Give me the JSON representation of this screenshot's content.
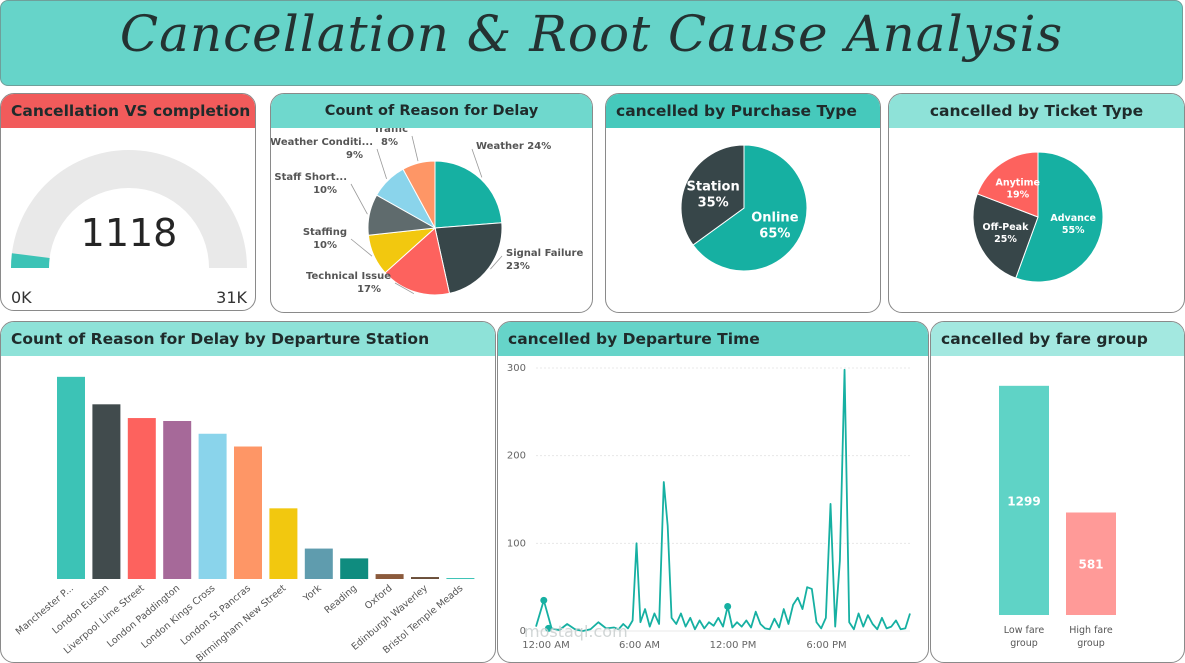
{
  "page_title": "Cancellation & Root Cause Analysis",
  "watermark": "mostaql.com",
  "gauge": {
    "title": "Cancellation VS completion",
    "value_label": "1118",
    "min_label": "0K",
    "max_label": "31K",
    "value": 1118,
    "max": 31000,
    "header_color": "#f15b5b",
    "fill_color": "#3cc3b6"
  },
  "reason_pie": {
    "title": "Count of Reason for Delay",
    "slices": [
      {
        "label": "Weather",
        "pct_label": "24%",
        "value": 24,
        "color": "#16b0a2"
      },
      {
        "label": "Signal Failure",
        "pct_label": "23%",
        "value": 23,
        "color": "#374649"
      },
      {
        "label": "Technical Issue",
        "pct_label": "17%",
        "value": 17,
        "color": "#fd625e"
      },
      {
        "label": "Staffing",
        "pct_label": "10%",
        "value": 10,
        "color": "#f2c80f"
      },
      {
        "label": "Staff Short...",
        "pct_label": "10%",
        "value": 10,
        "color": "#5f6b6d"
      },
      {
        "label": "Weather Conditi...",
        "pct_label": "9%",
        "value": 9,
        "color": "#8ad4eb"
      },
      {
        "label": "Traffic",
        "pct_label": "8%",
        "value": 8,
        "color": "#fe9666"
      }
    ]
  },
  "purchase_pie": {
    "title": "cancelled by Purchase Type",
    "slices": [
      {
        "label": "Online",
        "pct_label": "65%",
        "value": 65,
        "color": "#16b0a2"
      },
      {
        "label": "Station",
        "pct_label": "35%",
        "value": 35,
        "color": "#374649"
      }
    ]
  },
  "ticket_pie": {
    "title": "cancelled by Ticket Type",
    "slices": [
      {
        "label": "Advance",
        "pct_label": "55%",
        "value": 55,
        "color": "#16b0a2"
      },
      {
        "label": "Off-Peak",
        "pct_label": "25%",
        "value": 25,
        "color": "#374649"
      },
      {
        "label": "Anytime",
        "pct_label": "19%",
        "value": 19,
        "color": "#fd625e"
      }
    ]
  },
  "station_bar": {
    "title": "Count of Reason for Delay by Departure Station",
    "ymax": 215,
    "bars": [
      {
        "label": "Manchester P...",
        "value": 206,
        "color": "#3cc3b6"
      },
      {
        "label": "London Euston",
        "value": 178,
        "color": "#414b4d"
      },
      {
        "label": "Liverpool Lime Street",
        "value": 164,
        "color": "#fd625e"
      },
      {
        "label": "London Paddington",
        "value": 161,
        "color": "#a66999"
      },
      {
        "label": "London Kings Cross",
        "value": 148,
        "color": "#8ad4eb"
      },
      {
        "label": "London St Pancras",
        "value": 135,
        "color": "#fe9666"
      },
      {
        "label": "Birmingham New Street",
        "value": 72,
        "color": "#f2c80f"
      },
      {
        "label": "York",
        "value": 31,
        "color": "#5f9cae"
      },
      {
        "label": "Reading",
        "value": 21,
        "color": "#0f8c7f"
      },
      {
        "label": "Oxford",
        "value": 5,
        "color": "#8b5a3c"
      },
      {
        "label": "Edinburgh Waverley",
        "value": 2,
        "color": "#6b4f3a"
      },
      {
        "label": "Bristol Temple Meads",
        "value": 1,
        "color": "#3cc3b6"
      }
    ]
  },
  "time_line": {
    "title": "cancelled by Departure Time",
    "yticks": [
      0,
      100,
      200,
      300
    ],
    "ymax": 300,
    "xticks": [
      {
        "label": "12:00 AM",
        "hour": 0
      },
      {
        "label": "6:00 AM",
        "hour": 6
      },
      {
        "label": "12:00 PM",
        "hour": 12
      },
      {
        "label": "6:00 PM",
        "hour": 18
      }
    ],
    "xmax_hour": 24,
    "color": "#16b0a2",
    "points": [
      [
        0.0,
        5
      ],
      [
        0.5,
        35
      ],
      [
        1.0,
        3
      ],
      [
        1.5,
        1
      ],
      [
        2.0,
        8
      ],
      [
        2.5,
        2
      ],
      [
        3.0,
        0
      ],
      [
        3.5,
        2
      ],
      [
        4.0,
        10
      ],
      [
        4.5,
        3
      ],
      [
        5.0,
        4
      ],
      [
        5.3,
        2
      ],
      [
        5.6,
        8
      ],
      [
        5.9,
        3
      ],
      [
        6.2,
        12
      ],
      [
        6.45,
        100
      ],
      [
        6.7,
        10
      ],
      [
        7.0,
        25
      ],
      [
        7.3,
        5
      ],
      [
        7.6,
        20
      ],
      [
        7.9,
        8
      ],
      [
        8.2,
        170
      ],
      [
        8.45,
        120
      ],
      [
        8.7,
        15
      ],
      [
        9.0,
        8
      ],
      [
        9.3,
        20
      ],
      [
        9.6,
        5
      ],
      [
        9.9,
        15
      ],
      [
        10.2,
        2
      ],
      [
        10.5,
        12
      ],
      [
        10.8,
        3
      ],
      [
        11.1,
        10
      ],
      [
        11.4,
        6
      ],
      [
        11.7,
        15
      ],
      [
        12.0,
        5
      ],
      [
        12.3,
        28
      ],
      [
        12.6,
        4
      ],
      [
        12.9,
        10
      ],
      [
        13.2,
        5
      ],
      [
        13.5,
        12
      ],
      [
        13.8,
        4
      ],
      [
        14.1,
        22
      ],
      [
        14.4,
        8
      ],
      [
        14.7,
        3
      ],
      [
        15.0,
        2
      ],
      [
        15.3,
        14
      ],
      [
        15.6,
        4
      ],
      [
        15.9,
        25
      ],
      [
        16.2,
        8
      ],
      [
        16.5,
        30
      ],
      [
        16.8,
        38
      ],
      [
        17.1,
        25
      ],
      [
        17.4,
        50
      ],
      [
        17.7,
        48
      ],
      [
        18.0,
        10
      ],
      [
        18.3,
        3
      ],
      [
        18.6,
        15
      ],
      [
        18.9,
        145
      ],
      [
        19.2,
        5
      ],
      [
        19.5,
        80
      ],
      [
        19.8,
        298
      ],
      [
        20.1,
        10
      ],
      [
        20.4,
        2
      ],
      [
        20.7,
        20
      ],
      [
        21.0,
        5
      ],
      [
        21.3,
        18
      ],
      [
        21.6,
        8
      ],
      [
        21.9,
        2
      ],
      [
        22.2,
        15
      ],
      [
        22.5,
        3
      ],
      [
        22.8,
        5
      ],
      [
        23.1,
        12
      ],
      [
        23.4,
        2
      ],
      [
        23.7,
        3
      ],
      [
        24.0,
        20
      ]
    ]
  },
  "fare_bar": {
    "title": "cancelled by fare group",
    "ymax": 1400,
    "bars": [
      {
        "label": "Low fare group",
        "value": 1299,
        "value_label": "1299",
        "color": "#5fd3c6"
      },
      {
        "label": "High fare group",
        "value": 581,
        "value_label": "581",
        "color": "#ff9a98"
      }
    ]
  },
  "chart_data": [
    {
      "type": "pie",
      "title": "Count of Reason for Delay",
      "categories": [
        "Weather",
        "Signal Failure",
        "Technical Issue",
        "Staffing",
        "Staff Short...",
        "Weather Conditi...",
        "Traffic"
      ],
      "values": [
        24,
        23,
        17,
        10,
        10,
        9,
        8
      ]
    },
    {
      "type": "pie",
      "title": "cancelled by Purchase Type",
      "categories": [
        "Online",
        "Station"
      ],
      "values": [
        65,
        35
      ]
    },
    {
      "type": "pie",
      "title": "cancelled by Ticket Type",
      "categories": [
        "Advance",
        "Off-Peak",
        "Anytime"
      ],
      "values": [
        55,
        25,
        19
      ]
    },
    {
      "type": "bar",
      "title": "Count of Reason for Delay by Departure Station",
      "categories": [
        "Manchester P...",
        "London Euston",
        "Liverpool Lime Street",
        "London Paddington",
        "London Kings Cross",
        "London St Pancras",
        "Birmingham New Street",
        "York",
        "Reading",
        "Oxford",
        "Edinburgh Waverley",
        "Bristol Temple Meads"
      ],
      "values": [
        206,
        178,
        164,
        161,
        148,
        135,
        72,
        31,
        21,
        5,
        2,
        1
      ]
    },
    {
      "type": "line",
      "title": "cancelled by Departure Time",
      "ylim": [
        0,
        300
      ]
    },
    {
      "type": "bar",
      "title": "cancelled by fare group",
      "categories": [
        "Low fare group",
        "High fare group"
      ],
      "values": [
        1299,
        581
      ]
    }
  ]
}
